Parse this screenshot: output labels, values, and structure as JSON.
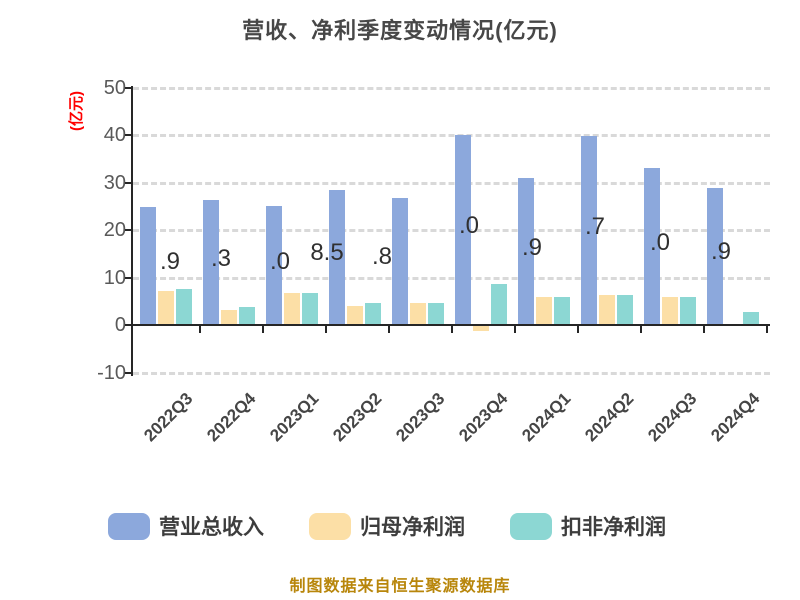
{
  "title": "营收、净利季度变动情况(亿元)",
  "caption": "制图数据来自恒生聚源数据库",
  "y_axis": {
    "unit_label": "(亿元)",
    "tick_labels": [
      "50",
      "40",
      "30",
      "20",
      "10",
      "0",
      "-10"
    ],
    "tick_values": [
      50,
      40,
      30,
      20,
      10,
      0,
      -10
    ]
  },
  "x_axis": {
    "categories": [
      "2022Q3",
      "2022Q4",
      "2023Q1",
      "2023Q2",
      "2023Q3",
      "2023Q4",
      "2024Q1",
      "2024Q2",
      "2024Q3",
      "2024Q4"
    ]
  },
  "legend": {
    "items": [
      {
        "label": "营业总收入",
        "color": "#8CA8DC"
      },
      {
        "label": "归母净利润",
        "color": "#FCDFA6"
      },
      {
        "label": "扣非净利润",
        "color": "#8CD7D3"
      }
    ]
  },
  "colors": {
    "revenue_bar": "#8CA8DC",
    "net_profit_bar": "#FCDFA6",
    "non_gaap_profit_bar": "#8CD7D3",
    "grid": "#D9D9D9",
    "axis": "#262626",
    "title_text": "#474747",
    "tick_text": "#595959",
    "unit_text": "#FF0000",
    "caption_text": "#B8860B"
  },
  "chart_data": {
    "type": "bar",
    "title": "营收、净利季度变动情况(亿元)",
    "categories": [
      "2022Q3",
      "2022Q4",
      "2023Q1",
      "2023Q2",
      "2023Q3",
      "2023Q4",
      "2024Q1",
      "2024Q2",
      "2024Q3",
      "2024Q4"
    ],
    "series": [
      {
        "name": "营业总收入",
        "color": "#8CA8DC",
        "values": [
          24.9,
          26.3,
          25.0,
          28.5,
          26.8,
          40.0,
          30.9,
          39.7,
          33.0,
          28.9
        ]
      },
      {
        "name": "归母净利润",
        "color": "#FCDFA6",
        "values": [
          7.2,
          3.2,
          6.8,
          4.1,
          4.7,
          -1.0,
          5.9,
          6.4,
          6.0,
          0.1
        ]
      },
      {
        "name": "扣非净利润",
        "color": "#8CD7D3",
        "values": [
          7.5,
          3.7,
          6.8,
          4.6,
          4.7,
          8.6,
          6.0,
          6.4,
          5.9,
          2.8
        ]
      }
    ],
    "bar_label_visible_fragments": [
      ".9",
      ".3",
      ".0",
      "8.5",
      ".8",
      ".0",
      ".9",
      ".7",
      ".0",
      ".9"
    ],
    "xlabel": "",
    "ylabel": "(亿元)",
    "ylim": [
      -10,
      50
    ],
    "grid": true,
    "grid_style": "dashed",
    "legend_position": "bottom"
  }
}
